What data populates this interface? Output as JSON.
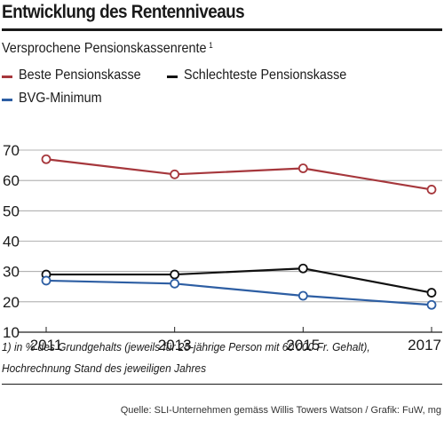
{
  "header": {
    "title": "Entwicklung des Rentenniveaus",
    "subtitle": "Versprochene Pensionskassenrente",
    "subtitle_footnote_mark": "1"
  },
  "legend": [
    {
      "label": "Beste Pensionskasse",
      "color": "#a6373c"
    },
    {
      "label": "Schlechteste Pensionskasse",
      "color": "#111111"
    },
    {
      "label": "BVG-Minimum",
      "color": "#2d5ea3"
    }
  ],
  "chart_data": {
    "type": "line",
    "title": "Entwicklung des Rentenniveaus",
    "subtitle": "Versprochene Pensionskassenrente",
    "x": [
      2011,
      2013,
      2015,
      2017
    ],
    "x_tick_labels": [
      "2011",
      "2013",
      "2015",
      "2017"
    ],
    "y_ticks": [
      10,
      20,
      30,
      40,
      50,
      60,
      70
    ],
    "ylim": [
      10,
      74
    ],
    "xlabel": "",
    "ylabel": "",
    "grid": "horizontal",
    "legend_position": "top-left",
    "series": [
      {
        "name": "Beste Pensionskasse",
        "color": "#a6373c",
        "values": [
          67,
          62,
          64,
          57
        ]
      },
      {
        "name": "Schlechteste Pensionskasse",
        "color": "#111111",
        "values": [
          29,
          29,
          31,
          23
        ]
      },
      {
        "name": "BVG-Minimum",
        "color": "#2d5ea3",
        "values": [
          27,
          26,
          22,
          19
        ]
      }
    ]
  },
  "footnote": {
    "line1": "1) in % des  Grundgehalts (jeweils für 25-jährige Person mit 60'000 Fr. Gehalt),",
    "line2": "Hochrechnung Stand des jeweiligen Jahres"
  },
  "source": "Quelle: SLI-Unternehmen gemäss Willis Towers Watson / Grafik: FuW, mg"
}
